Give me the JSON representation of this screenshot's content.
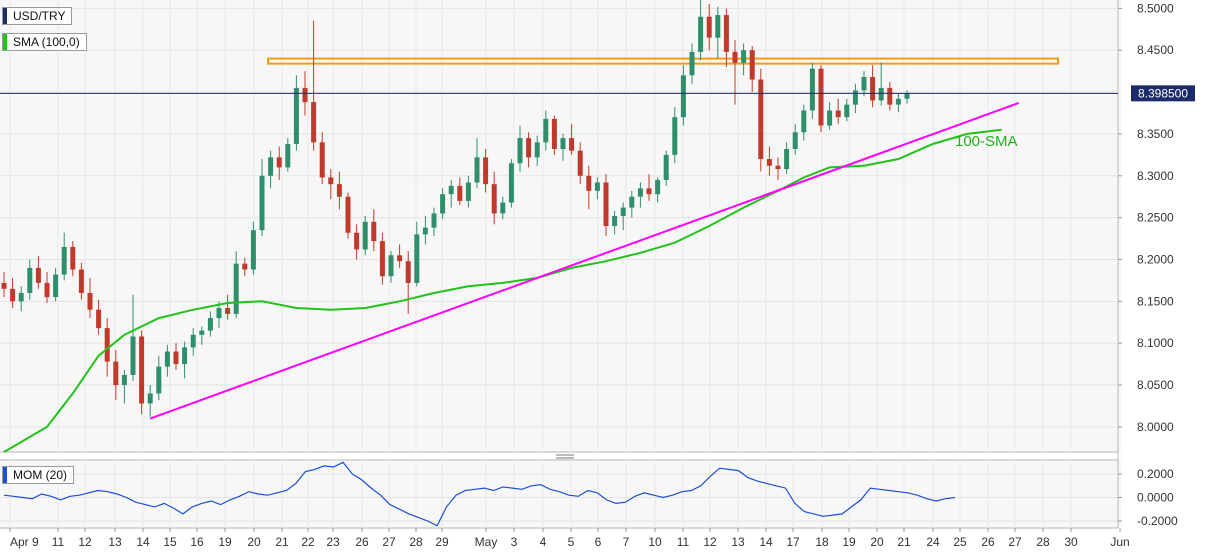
{
  "chart_data": [
    {
      "type": "candlestick",
      "symbol": "USD/TRY",
      "indicator_label": "SMA (100,0)",
      "sma_annotation": "100-SMA",
      "current_price_label": "8.398500",
      "current_price": 8.3985,
      "ylim": [
        7.97,
        8.51
      ],
      "y_ticks": [
        "8.5000",
        "8.4500",
        "8.4000",
        "8.3500",
        "8.3000",
        "8.2500",
        "8.2000",
        "8.1500",
        "8.1000",
        "8.0500",
        "8.0000"
      ],
      "y_tick_values": [
        8.5,
        8.45,
        8.4,
        8.35,
        8.3,
        8.25,
        8.2,
        8.15,
        8.1,
        8.05,
        8.0
      ],
      "x_ticks": [
        "Apr 9",
        "11",
        "12",
        "13",
        "14",
        "15",
        "16",
        "19",
        "20",
        "21",
        "22",
        "23",
        "26",
        "27",
        "28",
        "29",
        "May",
        "3",
        "4",
        "5",
        "6",
        "7",
        "10",
        "11",
        "12",
        "13",
        "14",
        "17",
        "18",
        "19",
        "20",
        "21",
        "24",
        "25",
        "26",
        "27",
        "28",
        "30",
        "Jun"
      ],
      "candles": [
        [
          8.172,
          8.185,
          8.155,
          8.165
        ],
        [
          8.165,
          8.178,
          8.142,
          8.15
        ],
        [
          8.15,
          8.168,
          8.138,
          8.16
        ],
        [
          8.16,
          8.2,
          8.152,
          8.19
        ],
        [
          8.19,
          8.204,
          8.165,
          8.172
        ],
        [
          8.172,
          8.185,
          8.148,
          8.155
        ],
        [
          8.155,
          8.19,
          8.15,
          8.182
        ],
        [
          8.182,
          8.232,
          8.175,
          8.215
        ],
        [
          8.215,
          8.222,
          8.18,
          8.188
        ],
        [
          8.188,
          8.196,
          8.152,
          8.16
        ],
        [
          8.16,
          8.178,
          8.13,
          8.14
        ],
        [
          8.14,
          8.152,
          8.11,
          8.118
        ],
        [
          8.118,
          8.13,
          8.06,
          8.078
        ],
        [
          8.078,
          8.092,
          8.032,
          8.05
        ],
        [
          8.05,
          8.068,
          8.028,
          8.062
        ],
        [
          8.062,
          8.158,
          8.055,
          8.108
        ],
        [
          8.108,
          8.115,
          8.015,
          8.028
        ],
        [
          8.028,
          8.05,
          8.012,
          8.04
        ],
        [
          8.04,
          8.085,
          8.032,
          8.072
        ],
        [
          8.072,
          8.098,
          8.06,
          8.09
        ],
        [
          8.09,
          8.1,
          8.068,
          8.075
        ],
        [
          8.075,
          8.102,
          8.058,
          8.095
        ],
        [
          8.095,
          8.118,
          8.085,
          8.11
        ],
        [
          8.11,
          8.12,
          8.098,
          8.115
        ],
        [
          8.115,
          8.138,
          8.108,
          8.13
        ],
        [
          8.13,
          8.15,
          8.118,
          8.142
        ],
        [
          8.142,
          8.158,
          8.128,
          8.135
        ],
        [
          8.135,
          8.21,
          8.13,
          8.195
        ],
        [
          8.195,
          8.202,
          8.18,
          8.188
        ],
        [
          8.188,
          8.245,
          8.182,
          8.235
        ],
        [
          8.235,
          8.32,
          8.228,
          8.3
        ],
        [
          8.3,
          8.33,
          8.285,
          8.322
        ],
        [
          8.322,
          8.335,
          8.295,
          8.31
        ],
        [
          8.31,
          8.345,
          8.305,
          8.338
        ],
        [
          8.338,
          8.42,
          8.33,
          8.405
        ],
        [
          8.405,
          8.425,
          8.372,
          8.388
        ],
        [
          8.388,
          8.485,
          8.33,
          8.34
        ],
        [
          8.34,
          8.352,
          8.29,
          8.298
        ],
        [
          8.298,
          8.308,
          8.272,
          8.29
        ],
        [
          8.29,
          8.305,
          8.26,
          8.275
        ],
        [
          8.275,
          8.28,
          8.225,
          8.232
        ],
        [
          8.232,
          8.242,
          8.2,
          8.212
        ],
        [
          8.212,
          8.252,
          8.205,
          8.245
        ],
        [
          8.245,
          8.26,
          8.21,
          8.222
        ],
        [
          8.222,
          8.232,
          8.17,
          8.18
        ],
        [
          8.18,
          8.21,
          8.172,
          8.205
        ],
        [
          8.205,
          8.218,
          8.19,
          8.198
        ],
        [
          8.198,
          8.21,
          8.135,
          8.172
        ],
        [
          8.172,
          8.245,
          8.168,
          8.23
        ],
        [
          8.23,
          8.252,
          8.218,
          8.238
        ],
        [
          8.238,
          8.262,
          8.228,
          8.255
        ],
        [
          8.255,
          8.285,
          8.248,
          8.278
        ],
        [
          8.278,
          8.295,
          8.262,
          8.288
        ],
        [
          8.288,
          8.298,
          8.265,
          8.27
        ],
        [
          8.27,
          8.3,
          8.262,
          8.292
        ],
        [
          8.292,
          8.345,
          8.285,
          8.322
        ],
        [
          8.322,
          8.332,
          8.28,
          8.29
        ],
        [
          8.29,
          8.305,
          8.242,
          8.255
        ],
        [
          8.255,
          8.275,
          8.248,
          8.268
        ],
        [
          8.268,
          8.32,
          8.262,
          8.315
        ],
        [
          8.315,
          8.36,
          8.305,
          8.345
        ],
        [
          8.345,
          8.352,
          8.31,
          8.322
        ],
        [
          8.322,
          8.348,
          8.312,
          8.34
        ],
        [
          8.34,
          8.378,
          8.33,
          8.368
        ],
        [
          8.368,
          8.372,
          8.325,
          8.332
        ],
        [
          8.332,
          8.35,
          8.318,
          8.345
        ],
        [
          8.345,
          8.362,
          8.325,
          8.33
        ],
        [
          8.33,
          8.34,
          8.29,
          8.3
        ],
        [
          8.3,
          8.312,
          8.26,
          8.282
        ],
        [
          8.282,
          8.298,
          8.272,
          8.292
        ],
        [
          8.292,
          8.302,
          8.228,
          8.24
        ],
        [
          8.24,
          8.258,
          8.23,
          8.252
        ],
        [
          8.252,
          8.268,
          8.235,
          8.262
        ],
        [
          8.262,
          8.282,
          8.25,
          8.275
        ],
        [
          8.275,
          8.292,
          8.262,
          8.285
        ],
        [
          8.285,
          8.302,
          8.27,
          8.278
        ],
        [
          8.278,
          8.298,
          8.268,
          8.295
        ],
        [
          8.295,
          8.33,
          8.288,
          8.325
        ],
        [
          8.325,
          8.382,
          8.315,
          8.37
        ],
        [
          8.37,
          8.432,
          8.36,
          8.42
        ],
        [
          8.42,
          8.458,
          8.41,
          8.448
        ],
        [
          8.448,
          8.51,
          8.438,
          8.49
        ],
        [
          8.49,
          8.505,
          8.45,
          8.465
        ],
        [
          8.465,
          8.502,
          8.44,
          8.492
        ],
        [
          8.492,
          8.5,
          8.43,
          8.448
        ],
        [
          8.448,
          8.462,
          8.385,
          8.435
        ],
        [
          8.435,
          8.458,
          8.42,
          8.45
        ],
        [
          8.45,
          8.455,
          8.4,
          8.415
        ],
        [
          8.415,
          8.428,
          8.305,
          8.32
        ],
        [
          8.32,
          8.335,
          8.3,
          8.312
        ],
        [
          8.312,
          8.322,
          8.295,
          8.308
        ],
        [
          8.308,
          8.34,
          8.302,
          8.332
        ],
        [
          8.332,
          8.362,
          8.325,
          8.352
        ],
        [
          8.352,
          8.385,
          8.342,
          8.378
        ],
        [
          8.378,
          8.435,
          8.368,
          8.428
        ],
        [
          8.428,
          8.432,
          8.352,
          8.36
        ],
        [
          8.36,
          8.388,
          8.355,
          8.378
        ],
        [
          8.378,
          8.392,
          8.362,
          8.37
        ],
        [
          8.37,
          8.392,
          8.365,
          8.385
        ],
        [
          8.385,
          8.41,
          8.375,
          8.402
        ],
        [
          8.402,
          8.425,
          8.395,
          8.418
        ],
        [
          8.418,
          8.432,
          8.382,
          8.39
        ],
        [
          8.39,
          8.435,
          8.384,
          8.405
        ],
        [
          8.405,
          8.412,
          8.378,
          8.385
        ],
        [
          8.385,
          8.398,
          8.376,
          8.392
        ],
        [
          8.392,
          8.402,
          8.386,
          8.3985
        ]
      ],
      "sma_points": [
        [
          7.97,
          0
        ],
        [
          8.0,
          5
        ],
        [
          8.04,
          8
        ],
        [
          8.085,
          11
        ],
        [
          8.11,
          14
        ],
        [
          8.13,
          18
        ],
        [
          8.14,
          22
        ],
        [
          8.148,
          26
        ],
        [
          8.15,
          30
        ],
        [
          8.142,
          34
        ],
        [
          8.14,
          38
        ],
        [
          8.142,
          42
        ],
        [
          8.15,
          46
        ],
        [
          8.16,
          50
        ],
        [
          8.168,
          54
        ],
        [
          8.172,
          58
        ],
        [
          8.178,
          62
        ],
        [
          8.19,
          66
        ],
        [
          8.198,
          70
        ],
        [
          8.208,
          74
        ],
        [
          8.22,
          78
        ],
        [
          8.24,
          82
        ],
        [
          8.262,
          86
        ],
        [
          8.282,
          90
        ],
        [
          8.298,
          93
        ],
        [
          8.31,
          96
        ],
        [
          8.312,
          100
        ],
        [
          8.32,
          104
        ],
        [
          8.338,
          108
        ],
        [
          8.35,
          112
        ],
        [
          8.355,
          116
        ]
      ],
      "resistance_band": [
        8.434,
        8.44
      ],
      "trendline": [
        [
          8.01,
          17
        ],
        [
          8.387,
          118
        ]
      ],
      "candle_colors": {
        "up": "#2f8f6b",
        "down": "#c0392b"
      },
      "sma_color": "#22c21a",
      "trendline_color": "#ff00ff",
      "band_color": "#f39c12",
      "price_line_color": "#1c2b6a"
    },
    {
      "type": "line",
      "indicator_label": "MOM (20)",
      "ylim": [
        -0.26,
        0.32
      ],
      "y_ticks": [
        "0.2000",
        "0.0000",
        "-0.2000"
      ],
      "y_tick_values": [
        0.2,
        0.0,
        -0.2
      ],
      "values": [
        0.02,
        0.01,
        0.0,
        -0.01,
        0.03,
        0.01,
        -0.02,
        0.01,
        0.02,
        0.04,
        0.06,
        0.05,
        0.03,
        0.0,
        -0.04,
        -0.06,
        -0.08,
        -0.05,
        -0.09,
        -0.14,
        -0.08,
        -0.05,
        -0.03,
        -0.06,
        -0.02,
        0.01,
        0.05,
        0.03,
        0.02,
        0.04,
        0.06,
        0.12,
        0.22,
        0.24,
        0.27,
        0.26,
        0.3,
        0.2,
        0.15,
        0.08,
        0.02,
        -0.06,
        -0.1,
        -0.14,
        -0.17,
        -0.2,
        -0.24,
        -0.08,
        0.02,
        0.06,
        0.07,
        0.08,
        0.06,
        0.09,
        0.08,
        0.07,
        0.1,
        0.11,
        0.07,
        0.05,
        0.02,
        0.01,
        0.06,
        0.04,
        -0.02,
        -0.05,
        -0.04,
        0.01,
        0.04,
        0.02,
        0.0,
        0.02,
        0.05,
        0.06,
        0.1,
        0.18,
        0.25,
        0.24,
        0.23,
        0.17,
        0.14,
        0.12,
        0.1,
        0.08,
        -0.05,
        -0.12,
        -0.14,
        -0.16,
        -0.15,
        -0.14,
        -0.08,
        -0.02,
        0.08,
        0.07,
        0.06,
        0.05,
        0.04,
        0.02,
        -0.01,
        -0.03,
        -0.01,
        0.0
      ],
      "line_color": "#1a4fd6"
    }
  ]
}
